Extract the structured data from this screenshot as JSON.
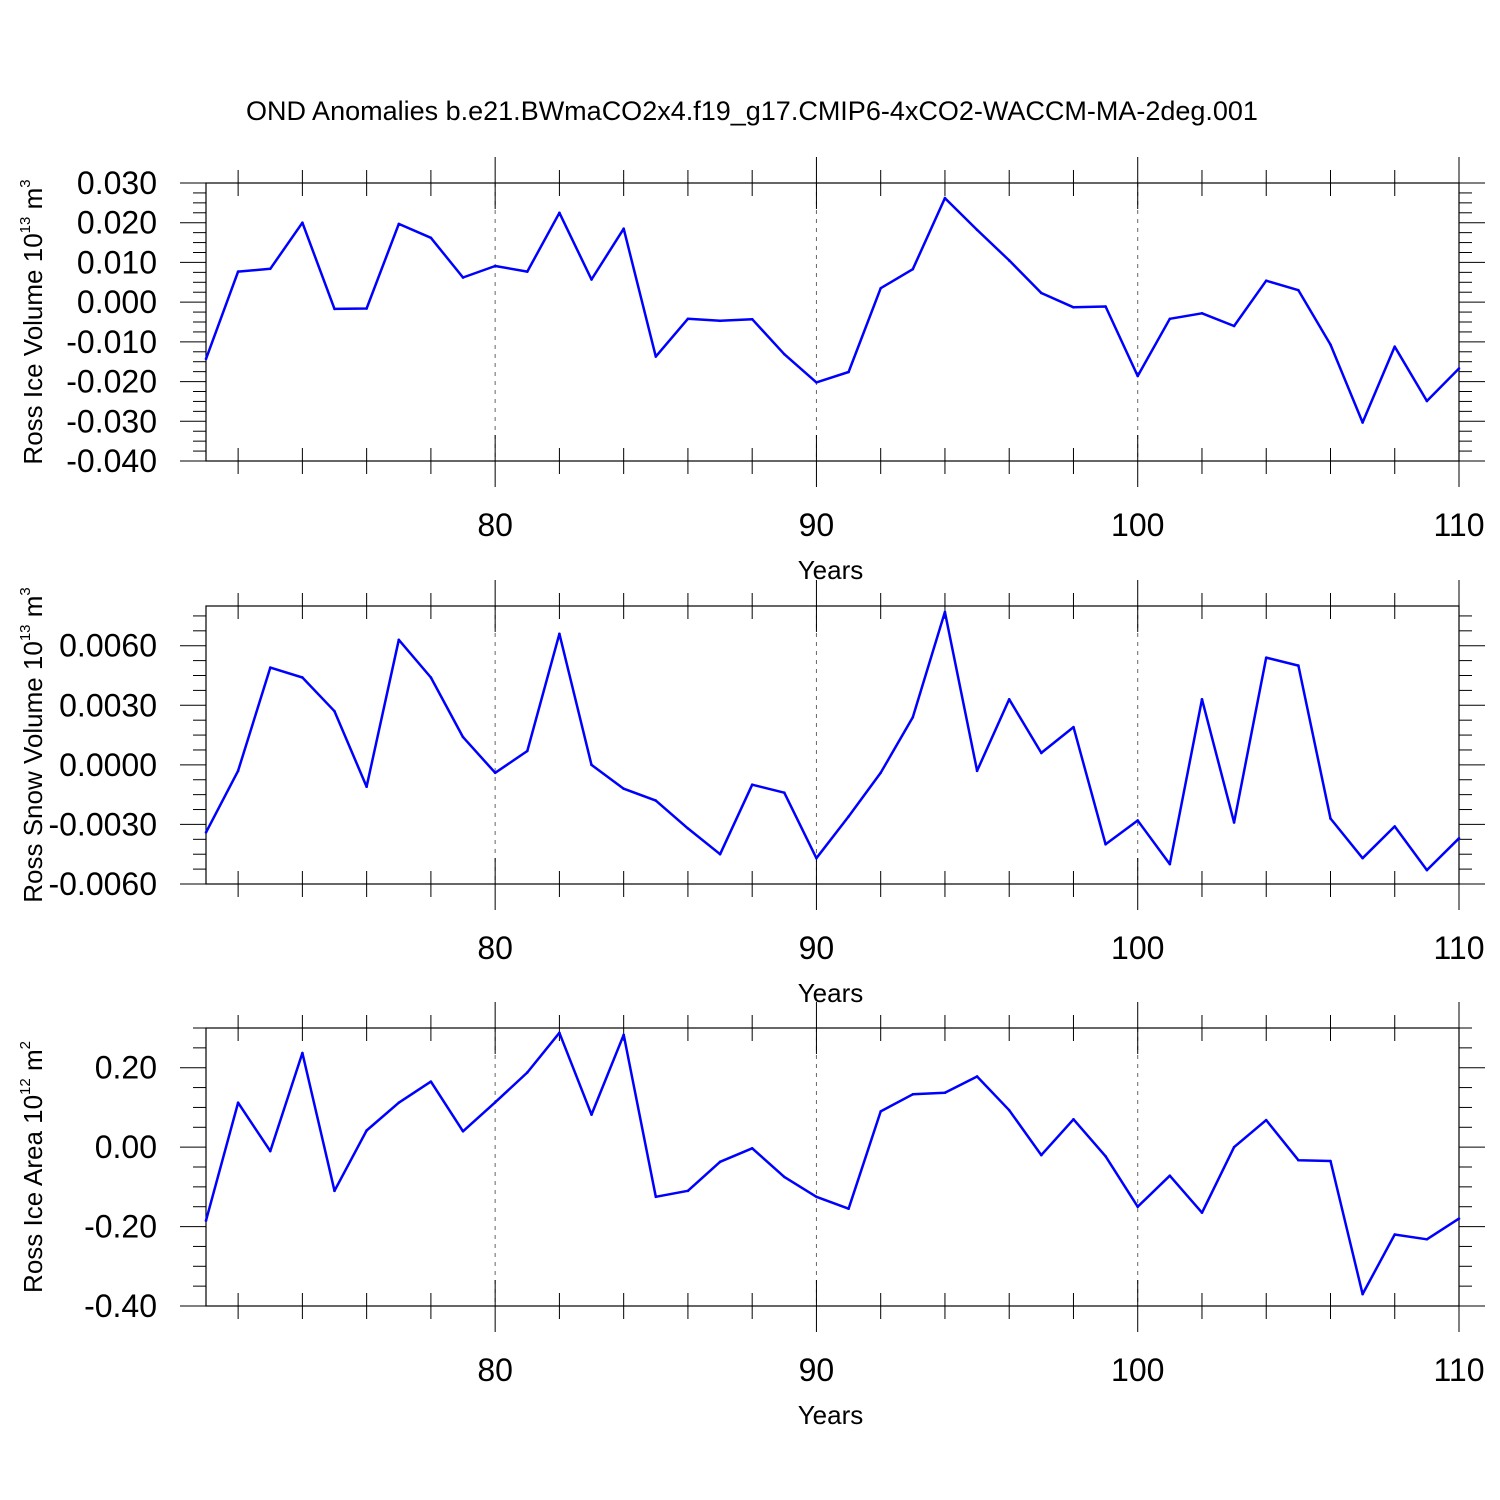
{
  "figure_title": "OND Anomalies b.e21.BWmaCO2x4.f19_g17.CMIP6-4xCO2-WACCM-MA-2deg.001",
  "series_color": "#0000ff",
  "chart_data": [
    {
      "type": "line",
      "ylabel": "Ross Ice Volume 10",
      "ylabel_exp": "13",
      "ylabel_unit": " m",
      "ylabel_unit_exp": "3",
      "xlabel": "Years",
      "xlim": [
        71,
        110
      ],
      "ylim": [
        -0.04,
        0.03
      ],
      "xticks": [
        80,
        90,
        100,
        110
      ],
      "xtick_labels": [
        "80",
        "90",
        "100",
        "110"
      ],
      "yticks": [
        0.03,
        0.02,
        0.01,
        0.0,
        -0.01,
        -0.02,
        -0.03,
        -0.04
      ],
      "ytick_labels": [
        "0.030",
        "0.020",
        "0.010",
        "0.000",
        "-0.010",
        "-0.020",
        "-0.030",
        "-0.040"
      ],
      "x": [
        71,
        72,
        73,
        74,
        75,
        76,
        77,
        78,
        79,
        80,
        81,
        82,
        83,
        84,
        85,
        86,
        87,
        88,
        89,
        90,
        91,
        92,
        93,
        94,
        95,
        96,
        97,
        98,
        99,
        100,
        101,
        102,
        103,
        104,
        105,
        106,
        107,
        108,
        109,
        110
      ],
      "values": [
        -0.0143,
        0.0077,
        0.0084,
        0.02,
        -0.0017,
        -0.0016,
        0.0197,
        0.0162,
        0.0062,
        0.0091,
        0.0077,
        0.0225,
        0.0057,
        0.0185,
        -0.0137,
        -0.0042,
        -0.0047,
        -0.0043,
        -0.0131,
        -0.0202,
        -0.0176,
        0.0035,
        0.0083,
        0.0262,
        0.0182,
        0.0105,
        0.0023,
        -0.0013,
        -0.0011,
        -0.0186,
        -0.0042,
        -0.0028,
        -0.006,
        0.0054,
        0.003,
        -0.0107,
        -0.0303,
        -0.0112,
        -0.0249,
        -0.0167
      ]
    },
    {
      "type": "line",
      "ylabel": "Ross Snow Volume 10",
      "ylabel_exp": "13",
      "ylabel_unit": " m",
      "ylabel_unit_exp": "3",
      "xlabel": "Years",
      "xlim": [
        71,
        110
      ],
      "ylim": [
        -0.006,
        0.008
      ],
      "xticks": [
        80,
        90,
        100,
        110
      ],
      "xtick_labels": [
        "80",
        "90",
        "100",
        "110"
      ],
      "yticks": [
        0.006,
        0.003,
        0.0,
        -0.003,
        -0.006
      ],
      "ytick_labels": [
        "0.0060",
        "0.0030",
        "0.0000",
        "-0.0030",
        "-0.0060"
      ],
      "x": [
        71,
        72,
        73,
        74,
        75,
        76,
        77,
        78,
        79,
        80,
        81,
        82,
        83,
        84,
        85,
        86,
        87,
        88,
        89,
        90,
        91,
        92,
        93,
        94,
        95,
        96,
        97,
        98,
        99,
        100,
        101,
        102,
        103,
        104,
        105,
        106,
        107,
        108,
        109,
        110
      ],
      "values": [
        -0.0034,
        -0.0003,
        0.0049,
        0.0044,
        0.0027,
        -0.0011,
        0.0063,
        0.0044,
        0.0014,
        -0.0004,
        0.0007,
        0.0066,
        0.0,
        -0.0012,
        -0.0018,
        -0.0032,
        -0.0045,
        -0.001,
        -0.0014,
        -0.0047,
        -0.0026,
        -0.0004,
        0.0024,
        0.0077,
        -0.0003,
        0.0033,
        0.0006,
        0.0019,
        -0.004,
        -0.0028,
        -0.005,
        0.0033,
        -0.0029,
        0.0054,
        0.005,
        -0.0027,
        -0.0047,
        -0.0031,
        -0.0053,
        -0.0037
      ]
    },
    {
      "type": "line",
      "ylabel": "Ross Ice Area 10",
      "ylabel_exp": "12",
      "ylabel_unit": " m",
      "ylabel_unit_exp": "2",
      "xlabel": "Years",
      "xlim": [
        71,
        110
      ],
      "ylim": [
        -0.4,
        0.3
      ],
      "xticks": [
        80,
        90,
        100,
        110
      ],
      "xtick_labels": [
        "80",
        "90",
        "100",
        "110"
      ],
      "yticks": [
        0.2,
        0.0,
        -0.2,
        -0.4
      ],
      "ytick_labels": [
        "0.20",
        "0.00",
        "-0.20",
        "-0.40"
      ],
      "x": [
        71,
        72,
        73,
        74,
        75,
        76,
        77,
        78,
        79,
        80,
        81,
        82,
        83,
        84,
        85,
        86,
        87,
        88,
        89,
        90,
        91,
        92,
        93,
        94,
        95,
        96,
        97,
        98,
        99,
        100,
        101,
        102,
        103,
        104,
        105,
        106,
        107,
        108,
        109,
        110
      ],
      "values": [
        -0.185,
        0.112,
        -0.01,
        0.237,
        -0.11,
        0.042,
        0.112,
        0.165,
        0.04,
        0.113,
        0.188,
        0.288,
        0.082,
        0.283,
        -0.125,
        -0.11,
        -0.037,
        -0.003,
        -0.075,
        -0.125,
        -0.155,
        0.09,
        0.133,
        0.137,
        0.178,
        0.093,
        -0.02,
        0.07,
        -0.023,
        -0.15,
        -0.072,
        -0.165,
        0.0,
        0.068,
        -0.033,
        -0.035,
        -0.37,
        -0.22,
        -0.232,
        -0.18
      ]
    }
  ]
}
